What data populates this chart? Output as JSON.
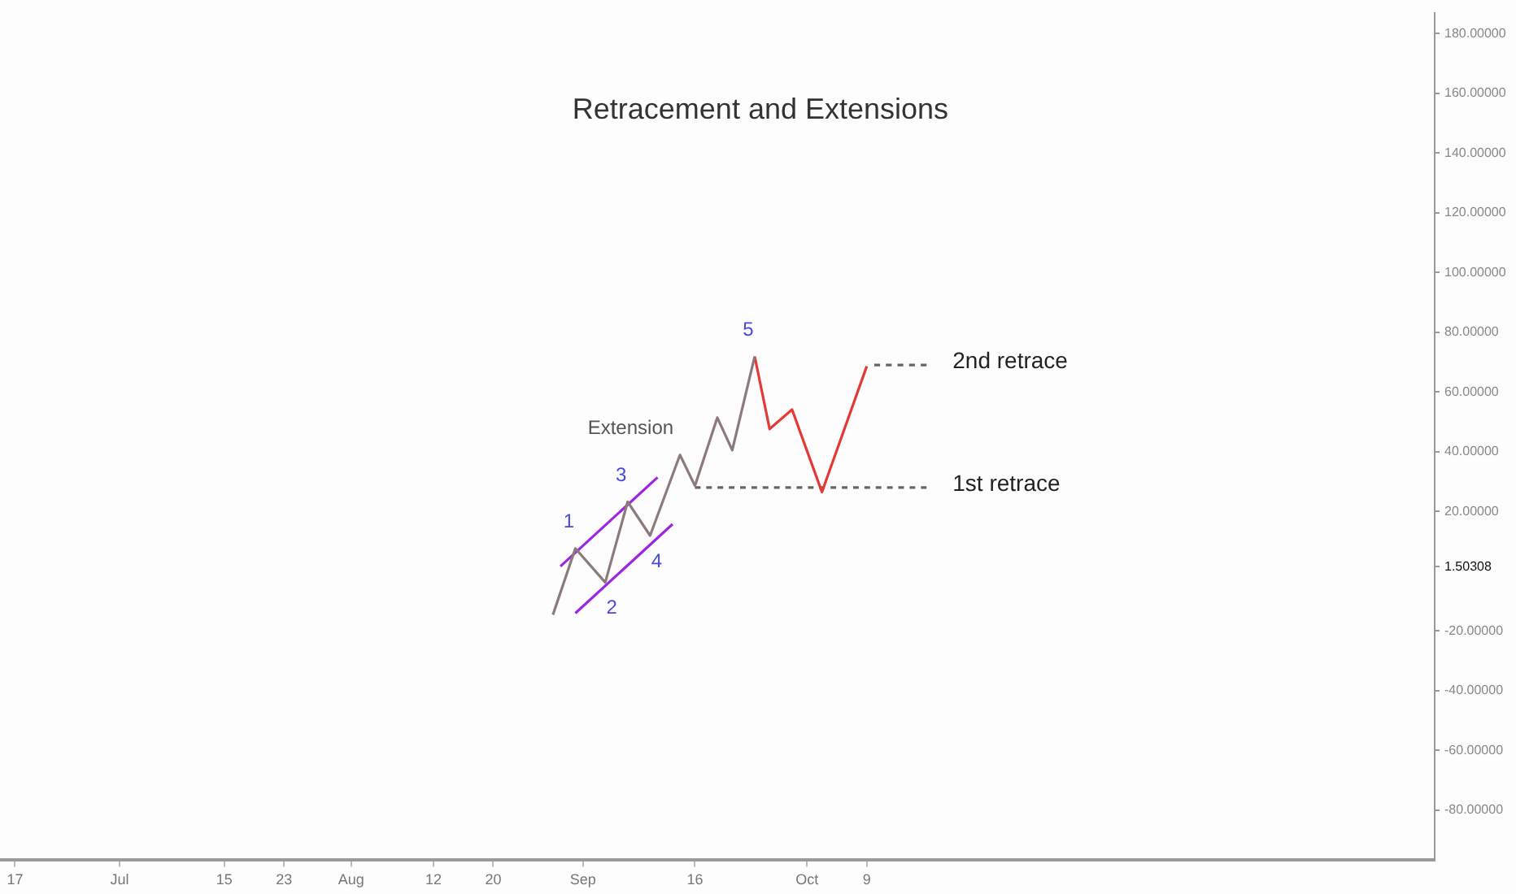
{
  "chart_data": {
    "type": "line",
    "title": "Retracement and Extensions",
    "series": [
      {
        "color": "#8d7b7b",
        "x": [
          "--08-28",
          "--08-31",
          "--09-04",
          "--09-07",
          "--09-10",
          "--09-14",
          "--09-16",
          "--09-19",
          "--09-21",
          "--09-24"
        ],
        "values": [
          -14.6,
          7.6,
          -3.8,
          23.2,
          11.9,
          38.9,
          28.6,
          51.4,
          40.5,
          71.9
        ]
      },
      {
        "color": "#e53935",
        "x": [
          "--09-24",
          "--09-26",
          "--09-29",
          "--10-03",
          "--10-09"
        ],
        "values": [
          71.9,
          47.6,
          54.1,
          26.5,
          68.6
        ]
      },
      {
        "color": "#9c27e0",
        "x": [
          "--08-29",
          "--09-11"
        ],
        "values": [
          1.6,
          31.4
        ]
      },
      {
        "color": "#9c27e0",
        "x": [
          "--08-31",
          "--09-13"
        ],
        "values": [
          -14.1,
          15.7
        ]
      },
      {
        "name": "1st retrace",
        "color": "#666666",
        "line_style": "dashed",
        "x": [
          "--09-16",
          "--10-17"
        ],
        "values": [
          28,
          28
        ]
      },
      {
        "name": "2nd retrace",
        "color": "#666666",
        "line_style": "dashed",
        "x": [
          "--10-10",
          "--10-17"
        ],
        "values": [
          69,
          69
        ]
      }
    ],
    "annotations": [
      {
        "text": "1",
        "x": "--08-31",
        "y": 7.6
      },
      {
        "text": "2",
        "x": "--09-04",
        "y": -3.8
      },
      {
        "text": "3",
        "x": "--09-07",
        "y": 23.2
      },
      {
        "text": "4",
        "x": "--09-10",
        "y": 11.9
      },
      {
        "text": "5",
        "x": "--09-24",
        "y": 71.9
      },
      {
        "text": "Extension",
        "x": "--09-14",
        "y": 38.9
      }
    ],
    "xlim": [
      "--06-15",
      "--12-24"
    ],
    "xticks": [
      {
        "value": "--06-17",
        "label": "17"
      },
      {
        "value": "--07-01",
        "label": "Jul"
      },
      {
        "value": "--07-15",
        "label": "15"
      },
      {
        "value": "--07-23",
        "label": "23"
      },
      {
        "value": "--08-01",
        "label": "Aug"
      },
      {
        "value": "--08-12",
        "label": "12"
      },
      {
        "value": "--08-20",
        "label": "20"
      },
      {
        "value": "--09-01",
        "label": "Sep"
      },
      {
        "value": "--09-16",
        "label": "16"
      },
      {
        "value": "--10-01",
        "label": "Oct"
      },
      {
        "value": "--10-09",
        "label": "9"
      }
    ],
    "ylim": [
      -96.8,
      187
    ],
    "yticks": [
      {
        "value": -80,
        "label": "-80.00000"
      },
      {
        "value": -60,
        "label": "-60.00000"
      },
      {
        "value": -40,
        "label": "-40.00000"
      },
      {
        "value": -20,
        "label": "-20.00000"
      },
      {
        "value": 1.50308,
        "label": "1.50308"
      },
      {
        "value": 20,
        "label": "20.00000"
      },
      {
        "value": 40,
        "label": "40.00000"
      },
      {
        "value": 60,
        "label": "60.00000"
      },
      {
        "value": 80,
        "label": "80.00000"
      },
      {
        "value": 100,
        "label": "100.00000"
      },
      {
        "value": 120,
        "label": "120.00000"
      },
      {
        "value": 140,
        "label": "140.00000"
      },
      {
        "value": 160,
        "label": "160.00000"
      },
      {
        "value": 180,
        "label": "180.00000"
      }
    ],
    "grid": false,
    "legend": false,
    "marker": "none"
  }
}
